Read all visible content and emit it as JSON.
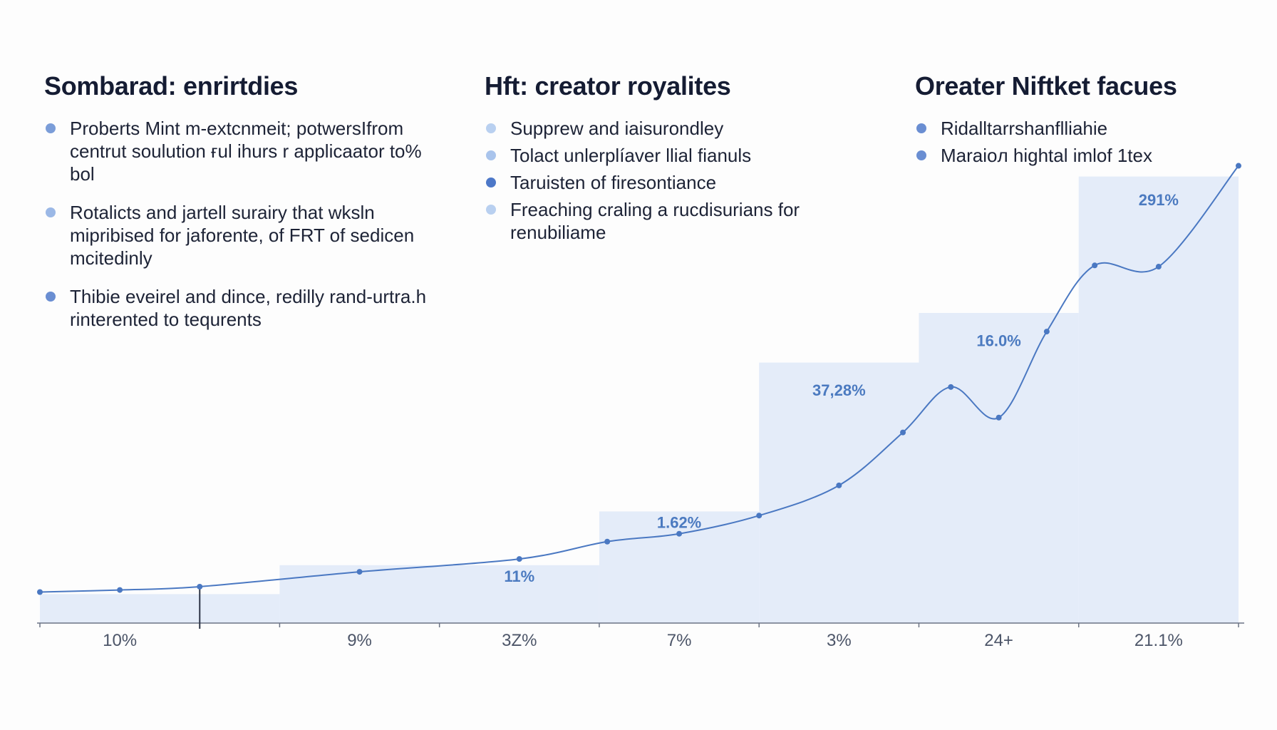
{
  "columns": [
    {
      "title": "Sombarad: enrirtdies",
      "bullets": [
        {
          "text": "Proberts Mint m-extcnmeit; potwersIfrom centrut soulution ғul ihurs r applicaator to% bol",
          "dot_color": "#7b9dd8"
        },
        {
          "text": "Rotalicts and jartell surairy that wksln mipribised for jaforente, of FRT of sedicen mcitedinly",
          "dot_color": "#9bb8e6"
        },
        {
          "text": "Thibie eveirel and dince, redilly rand-urtra.h rinterented to tequrents",
          "dot_color": "#6a8ed2"
        }
      ]
    },
    {
      "title": "Hft: creator royalites",
      "bullets": [
        {
          "text": "Supprew and iaisurondley",
          "dot_color": "#b9d0f0"
        },
        {
          "text": "Tolact unlerplíaver llial fianuls",
          "dot_color": "#a9c4ec"
        },
        {
          "text": "Taruisten of firesontiance",
          "dot_color": "#4d78c8"
        },
        {
          "text": "Freaching craling a rucdisurians for renubiliame",
          "dot_color": "#b9d0f0"
        }
      ]
    },
    {
      "title": "Oreater Niftket facues",
      "bullets": [
        {
          "text": "Ridalltarrshanflliahie",
          "dot_color": "#6a8ed2"
        },
        {
          "text": "Maraioл hightal imlof 1tex",
          "dot_color": "#6a8ed2"
        }
      ]
    }
  ],
  "colors": {
    "step_fill": "#e4ecf9",
    "line": "#4a78c2",
    "axis": "#6b7385",
    "data_label": "#4b7ac0",
    "tick_label": "#4c5568"
  },
  "chart_data": {
    "type": "area",
    "ylim": [
      0,
      100
    ],
    "x_tick_labels": [
      {
        "label": "10%",
        "x": 1
      },
      {
        "label": "9%",
        "x": 4
      },
      {
        "label": "3Z%",
        "x": 6
      },
      {
        "label": "7%",
        "x": 8
      },
      {
        "label": "3%",
        "x": 10
      },
      {
        "label": "24+",
        "x": 12
      },
      {
        "label": "21.1%",
        "x": 14
      }
    ],
    "steps": [
      {
        "x0": 0,
        "x1": 3,
        "value": 7
      },
      {
        "x0": 3,
        "x1": 7,
        "value": 14
      },
      {
        "x0": 7,
        "x1": 9,
        "value": 27
      },
      {
        "x0": 9,
        "x1": 11,
        "value": 63
      },
      {
        "x0": 11,
        "x1": 13,
        "value": 75
      },
      {
        "x0": 13,
        "x1": 15,
        "value": 108
      }
    ],
    "step_labels": [
      {
        "label": "11%",
        "x": 6,
        "value": 10
      },
      {
        "label": "1.62%",
        "x": 8,
        "value": 23
      },
      {
        "label": "37,28%",
        "x": 10,
        "value": 55
      },
      {
        "label": "16.0%",
        "x": 12,
        "value": 67
      },
      {
        "label": "291%",
        "x": 14,
        "value": 101
      }
    ],
    "series": [
      {
        "x": [
          0,
          1,
          2,
          4,
          6,
          7.1,
          8,
          9,
          10,
          10.8,
          11.4,
          12,
          12.6,
          13.2,
          14,
          15
        ],
        "y": [
          7.5,
          8,
          8.8,
          12.4,
          15.5,
          19.7,
          21.6,
          26,
          33.3,
          46.1,
          57.1,
          49.7,
          70.5,
          86.5,
          86.2,
          110.6
        ]
      }
    ]
  }
}
